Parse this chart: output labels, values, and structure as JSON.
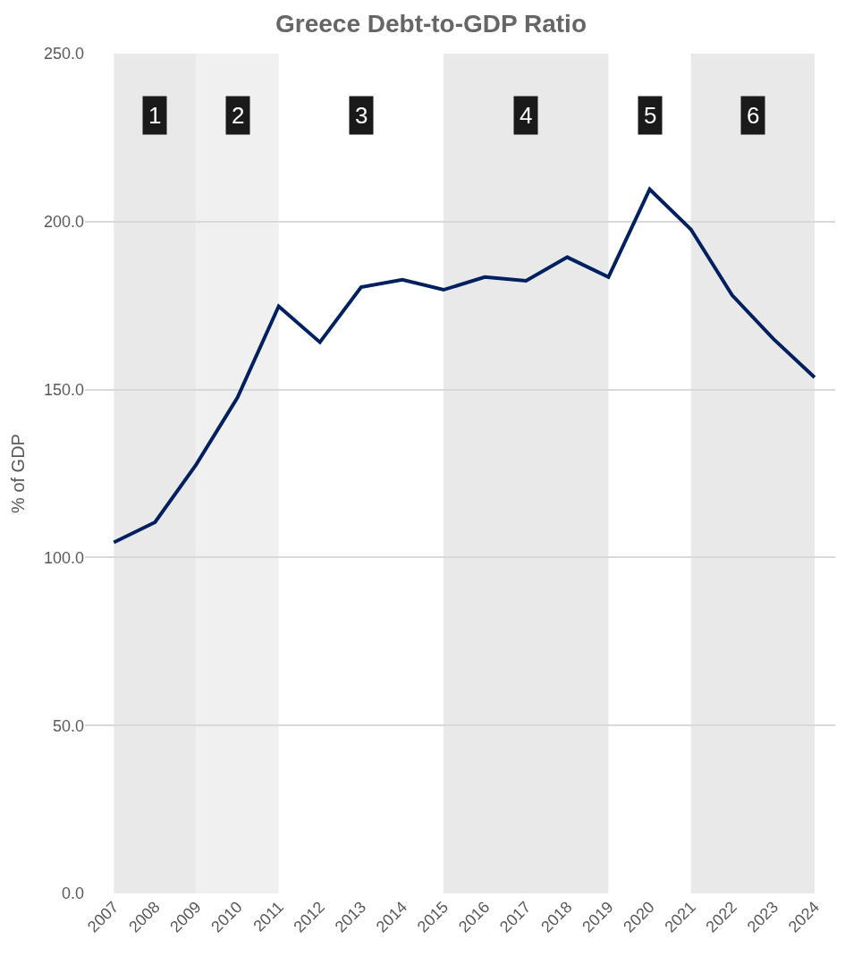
{
  "chart_data": {
    "type": "line",
    "title": "Greece Debt-to-GDP Ratio",
    "ylabel": "% of GDP",
    "categories": [
      "2007",
      "2008",
      "2009",
      "2010",
      "2011",
      "2012",
      "2013",
      "2014",
      "2015",
      "2016",
      "2017",
      "2018",
      "2019",
      "2020",
      "2021",
      "2022",
      "2023",
      "2024"
    ],
    "series": [
      {
        "color": "#002060",
        "values": [
          104.5,
          110.5,
          127.7,
          147.6,
          174.8,
          164.1,
          180.5,
          182.7,
          179.7,
          183.5,
          182.4,
          189.4,
          183.5,
          209.6,
          197.7,
          178.1,
          165.1,
          153.6
        ]
      }
    ],
    "ylim": [
      0,
      250
    ],
    "yticks": [
      {
        "value": 0,
        "label": "0.0"
      },
      {
        "value": 50,
        "label": "50.0"
      },
      {
        "value": 100,
        "label": "100.0"
      },
      {
        "value": 150,
        "label": "150.0"
      },
      {
        "value": 200,
        "label": "200.0"
      },
      {
        "value": 250,
        "label": "250.0"
      }
    ],
    "annotations": [
      "3",
      "5"
    ],
    "grid": "y",
    "legend": false,
    "marker": "none",
    "line_style": "solid",
    "bands": [
      {
        "axis": "x",
        "from": "2007",
        "to": "2009",
        "label": "1",
        "color": "#e9e9e9"
      },
      {
        "axis": "x",
        "from": "2009",
        "to": "2011",
        "label": "2",
        "color": "#f0f0f0"
      },
      {
        "axis": "x",
        "from": "2015",
        "to": "2019",
        "label": "4",
        "color": "#e9e9e9"
      },
      {
        "axis": "x",
        "from": "2021",
        "to": "2024",
        "label": "6",
        "color": "#e9e9e9"
      }
    ]
  }
}
